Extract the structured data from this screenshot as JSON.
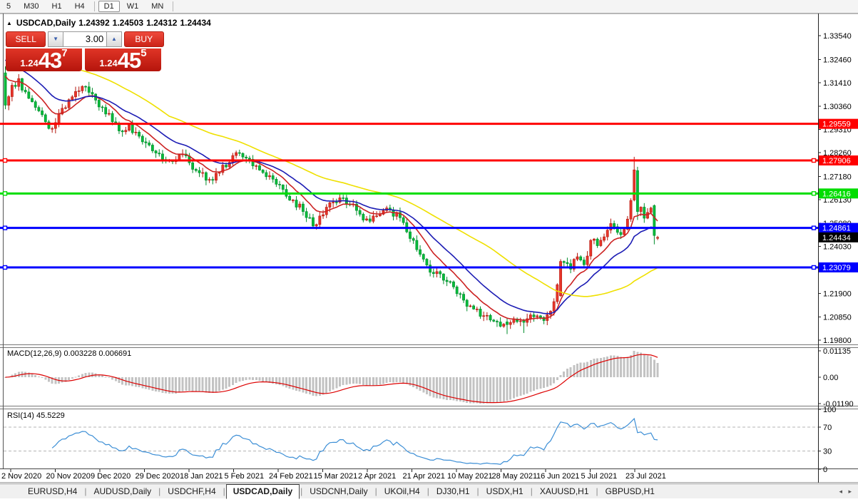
{
  "toolbar": {
    "timeframes": [
      "5",
      "M30",
      "H1",
      "H4",
      "D1",
      "W1",
      "MN"
    ],
    "active": "D1",
    "dividers_before": [
      "D1"
    ],
    "dividers_after": [
      "MN"
    ]
  },
  "chart_title": {
    "symbol_period": "USDCAD,Daily",
    "open": "1.24392",
    "high": "1.24503",
    "low": "1.24312",
    "close": "1.24434"
  },
  "trade_panel": {
    "sell_label": "SELL",
    "buy_label": "BUY",
    "volume": "3.00",
    "sell_price": {
      "prefix": "1.24",
      "big": "43",
      "sup": "7"
    },
    "buy_price": {
      "prefix": "1.24",
      "big": "45",
      "sup": "5"
    }
  },
  "indicators": {
    "macd_label": "MACD(12,26,9) 0.003228 0.006691",
    "rsi_label": "RSI(14) 45.5229"
  },
  "tabs": {
    "items": [
      "EURUSD,H4",
      "AUDUSD,Daily",
      "USDCHF,H4",
      "USDCAD,Daily",
      "USDCNH,Daily",
      "UKOil,H4",
      "DJ30,H1",
      "USDX,H1",
      "XAUUSD,H1",
      "GBPUSD,H1"
    ],
    "active": "USDCAD,Daily",
    "scroll_arrows": "◂ ▸"
  },
  "chart_data": {
    "type": "candlestick",
    "symbol": "USDCAD",
    "period": "Daily",
    "ohlc_current": {
      "open": 1.24392,
      "high": 1.24503,
      "low": 1.24312,
      "close": 1.24434
    },
    "y_axis": {
      "ylim": [
        1.19604,
        1.34536
      ],
      "ticks": [
        "1.33540",
        "1.32460",
        "1.31410",
        "1.30360",
        "1.29310",
        "1.28260",
        "1.27180",
        "1.26130",
        "1.25080",
        "1.24030",
        "1.22980",
        "1.21900",
        "1.20850",
        "1.19800"
      ]
    },
    "x_axis": {
      "labels": [
        "2 Nov 2020",
        "20 Nov 2020",
        "9 Dec 2020",
        "29 Dec 2020",
        "18 Jan 2021",
        "5 Feb 2021",
        "24 Feb 2021",
        "15 Mar 2021",
        "2 Apr 2021",
        "21 Apr 2021",
        "10 May 2021",
        "28 May 2021",
        "16 Jun 2021",
        "5 Jul 2021",
        "23 Jul 2021"
      ],
      "first_x": 15,
      "spacing": 62.5
    },
    "hlines": [
      {
        "price": 1.29559,
        "label": "1.29559",
        "color": "#ff0000",
        "selected": false
      },
      {
        "price": 1.27906,
        "label": "1.27906",
        "color": "#ff0000",
        "selected": true
      },
      {
        "price": 1.26416,
        "label": "1.26416",
        "color": "#00dd00",
        "selected": true
      },
      {
        "price": 1.24861,
        "label": "1.24861",
        "color": "#0000ff",
        "selected": true
      },
      {
        "price": 1.23079,
        "label": "1.23079",
        "color": "#0000ff",
        "selected": true
      }
    ],
    "current_price": {
      "value": 1.24434,
      "label": "1.24434",
      "bg": "#000000"
    },
    "candles": {
      "count": 196,
      "start_x": 7.5,
      "spacing": 4.69,
      "body_width": 3.2,
      "bull_fill": "#e8352a",
      "bull_stroke": "#b3170e",
      "bear_fill": "#00bb3a",
      "bear_stroke": "#008c2b",
      "first_open": 1.3186,
      "close_anchors": [
        [
          0,
          1.304
        ],
        [
          2,
          1.313
        ],
        [
          4,
          1.316
        ],
        [
          6,
          1.31
        ],
        [
          9,
          1.303
        ],
        [
          12,
          1.2965
        ],
        [
          14,
          1.2935
        ],
        [
          16,
          1.3
        ],
        [
          19,
          1.3065
        ],
        [
          23,
          1.3125
        ],
        [
          26,
          1.309
        ],
        [
          29,
          1.303
        ],
        [
          32,
          1.2965
        ],
        [
          35,
          1.292
        ],
        [
          37,
          1.2952
        ],
        [
          40,
          1.29
        ],
        [
          43,
          1.286
        ],
        [
          46,
          1.282
        ],
        [
          49,
          1.279
        ],
        [
          52,
          1.2816
        ],
        [
          55,
          1.278
        ],
        [
          58,
          1.2735
        ],
        [
          61,
          1.2705
        ],
        [
          64,
          1.2736
        ],
        [
          67,
          1.2782
        ],
        [
          69,
          1.2826
        ],
        [
          71,
          1.2806
        ],
        [
          74,
          1.2766
        ],
        [
          77,
          1.2736
        ],
        [
          80,
          1.2706
        ],
        [
          83,
          1.266
        ],
        [
          86,
          1.2612
        ],
        [
          89,
          1.256
        ],
        [
          92,
          1.2495
        ],
        [
          94,
          1.254
        ],
        [
          97,
          1.26
        ],
        [
          100,
          1.2622
        ],
        [
          103,
          1.259
        ],
        [
          106,
          1.2548
        ],
        [
          109,
          1.2516
        ],
        [
          112,
          1.2548
        ],
        [
          115,
          1.2568
        ],
        [
          119,
          1.251
        ],
        [
          122,
          1.243
        ],
        [
          125,
          1.2345
        ],
        [
          128,
          1.228
        ],
        [
          131,
          1.225
        ],
        [
          134,
          1.222
        ],
        [
          137,
          1.216
        ],
        [
          140,
          1.212
        ],
        [
          143,
          1.209
        ],
        [
          146,
          1.2065
        ],
        [
          149,
          1.2052
        ],
        [
          152,
          1.2075
        ],
        [
          155,
          1.2058
        ],
        [
          158,
          1.2085
        ],
        [
          161,
          1.2068
        ],
        [
          163,
          1.211
        ],
        [
          165,
          1.223
        ],
        [
          167,
          1.233
        ],
        [
          169,
          1.23
        ],
        [
          171,
          1.2356
        ],
        [
          173,
          1.232
        ],
        [
          175,
          1.243
        ],
        [
          177,
          1.2406
        ],
        [
          179,
          1.2446
        ],
        [
          181,
          1.2506
        ],
        [
          183,
          1.2466
        ],
        [
          185,
          1.248
        ],
        [
          186,
          1.2526
        ],
        [
          187,
          1.261
        ],
        [
          188,
          1.2748
        ],
        [
          189,
          1.256
        ],
        [
          190,
          1.258
        ],
        [
          191,
          1.253
        ],
        [
          192,
          1.2556
        ],
        [
          193,
          1.2576
        ],
        [
          194,
          1.2452
        ],
        [
          195,
          1.2443
        ]
      ],
      "overrides": {
        "0": [
          1.3186,
          1.3215,
          1.3022,
          1.304
        ],
        "150": [
          1.2062,
          1.2078,
          1.2007,
          1.205
        ],
        "155": [
          1.2068,
          1.2076,
          1.2012,
          1.206
        ],
        "166": [
          1.218,
          1.2345,
          1.2175,
          1.2335
        ],
        "188": [
          1.2612,
          1.2807,
          1.2606,
          1.2748
        ],
        "189": [
          1.2745,
          1.2762,
          1.2522,
          1.256
        ],
        "194": [
          1.2587,
          1.2592,
          1.2412,
          1.2452
        ],
        "195": [
          1.24392,
          1.24503,
          1.24312,
          1.24434
        ]
      }
    },
    "moving_averages": [
      {
        "type": "ema",
        "period": 10,
        "color": "#cc2222",
        "init": 1.32,
        "show_from": 0
      },
      {
        "type": "ema",
        "period": 21,
        "color": "#1c1cb4",
        "init": 1.3265,
        "show_from": 0
      },
      {
        "type": "sma",
        "period": 50,
        "color": "#efe000",
        "pad": 1.333,
        "show_from": 22
      }
    ],
    "macd": {
      "params": "12,26,9",
      "value": 0.003228,
      "signal": 0.006691,
      "hist_color": "#c3c3c3",
      "signal_color": "#dd0000",
      "axis_labels": [
        "0.01135",
        "0.00",
        "-0.01190"
      ]
    },
    "rsi": {
      "period": 14,
      "value": 45.5229,
      "color": "#3d8fd6",
      "axis_labels": [
        "100",
        "70",
        "30",
        "0"
      ],
      "level_lines": [
        70,
        30
      ]
    }
  }
}
